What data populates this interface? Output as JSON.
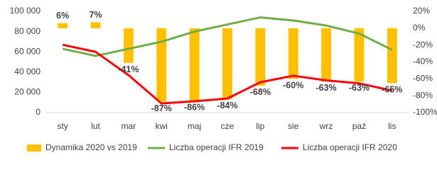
{
  "chart_data": {
    "type": "bar-line",
    "categories": [
      "sty",
      "lut",
      "mar",
      "kwi",
      "maj",
      "cze",
      "lip",
      "sie",
      "wrz",
      "paź",
      "lis"
    ],
    "series": [
      {
        "name": "Dynamika 2020 vs 2019",
        "type": "bar",
        "axis": "y2",
        "color": "#ffc000",
        "values": [
          6,
          7,
          -41,
          -87,
          -86,
          -84,
          -68,
          -60,
          -63,
          -63,
          -65
        ],
        "value_labels": [
          "6%",
          "7%",
          "-41%",
          "-87%",
          "-86%",
          "-84%",
          "-68%",
          "-60%",
          "-63%",
          "-63%",
          "-65%"
        ]
      },
      {
        "name": "Liczba operacji IFR 2019",
        "type": "line",
        "color": "#70ad47",
        "values": [
          63000,
          56000,
          63000,
          70000,
          80000,
          87000,
          94000,
          91000,
          86000,
          78000,
          62000
        ]
      },
      {
        "name": "Liczba operacji IFR 2020",
        "type": "line",
        "color": "#ff0000",
        "values": [
          67000,
          60000,
          37000,
          9100,
          11200,
          13900,
          30000,
          36400,
          31800,
          28900,
          21700
        ]
      }
    ],
    "ylim": [
      0,
      100000
    ],
    "yticks": [
      0,
      {
        "value": 20000,
        "label": "20 000"
      },
      {
        "value": 40000,
        "label": "40 000"
      },
      {
        "value": 60000,
        "label": "60 000"
      },
      {
        "value": 80000,
        "label": "80 000"
      },
      {
        "value": 100000,
        "label": "100 000"
      }
    ],
    "y2lim": [
      -100,
      20
    ],
    "y2ticks": [
      {
        "value": -100,
        "label": "-100%"
      },
      {
        "value": -80,
        "label": "-80%"
      },
      {
        "value": -60,
        "label": "-60%"
      },
      {
        "value": -40,
        "label": "-40%"
      },
      {
        "value": -20,
        "label": "-20%"
      },
      {
        "value": 0,
        "label": "0%"
      },
      {
        "value": 20,
        "label": "20%"
      }
    ],
    "legend": "bottom"
  }
}
